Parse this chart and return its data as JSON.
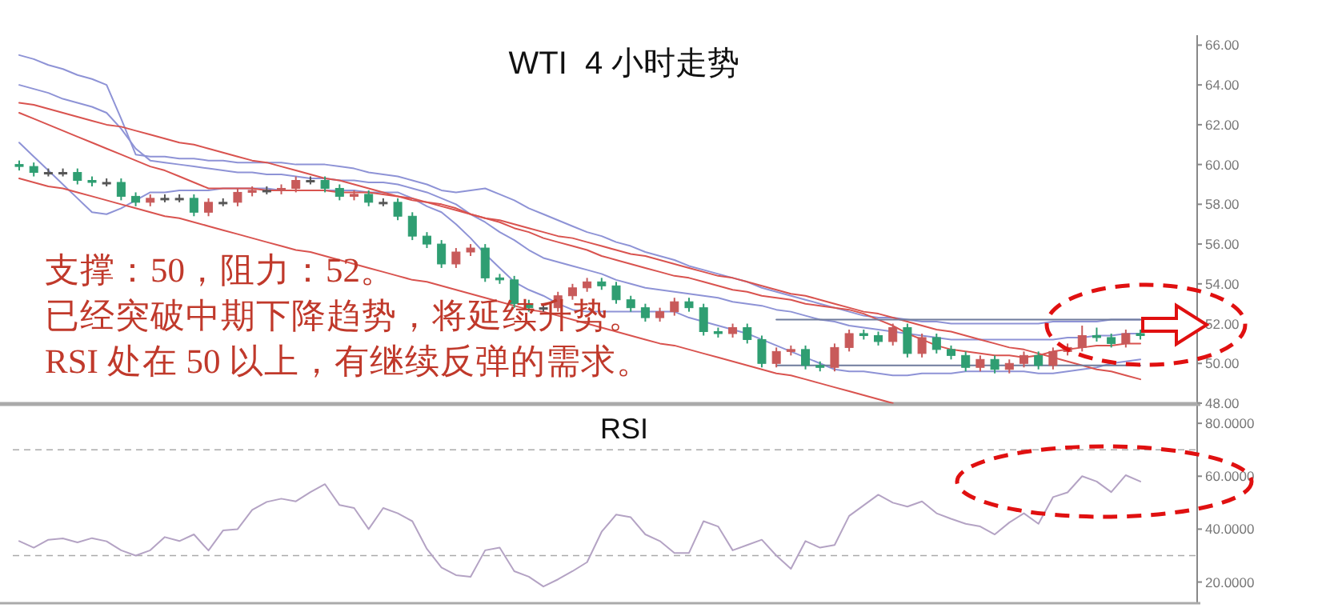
{
  "chart_data": [
    {
      "type": "candlestick",
      "title": "WTI  4 小时走势",
      "tick_labels": "y",
      "categories": [
        null,
        null,
        null,
        null,
        null,
        null,
        null,
        null,
        null,
        null,
        null,
        null,
        null,
        null,
        null,
        null,
        null,
        null,
        null,
        null,
        null,
        null,
        null,
        null,
        null,
        null,
        null,
        null,
        null,
        null,
        null,
        null,
        null,
        null,
        null,
        null,
        null,
        null,
        null,
        null,
        null,
        null,
        null,
        null,
        null,
        null,
        null,
        null,
        null,
        null,
        null,
        null,
        null,
        null,
        null,
        null,
        null,
        null,
        null,
        null,
        null,
        null,
        null,
        null,
        null,
        null,
        null,
        null,
        null,
        null,
        null,
        null,
        null,
        null,
        null,
        null,
        null,
        null
      ],
      "ohlc": [
        [
          60.0,
          60.2,
          59.7,
          59.9
        ],
        [
          59.9,
          60.1,
          59.4,
          59.6
        ],
        [
          59.6,
          59.8,
          59.4,
          59.6
        ],
        [
          59.6,
          59.8,
          59.4,
          59.6
        ],
        [
          59.6,
          59.8,
          59.0,
          59.2
        ],
        [
          59.2,
          59.4,
          58.9,
          59.1
        ],
        [
          59.1,
          59.3,
          58.9,
          59.1
        ],
        [
          59.1,
          59.3,
          58.2,
          58.4
        ],
        [
          58.4,
          58.6,
          57.9,
          58.1
        ],
        [
          58.1,
          58.5,
          57.9,
          58.3
        ],
        [
          58.3,
          58.5,
          58.1,
          58.3
        ],
        [
          58.3,
          58.5,
          58.1,
          58.3
        ],
        [
          58.3,
          58.5,
          57.4,
          57.6
        ],
        [
          57.6,
          58.3,
          57.4,
          58.1
        ],
        [
          58.1,
          58.3,
          57.9,
          58.1
        ],
        [
          58.1,
          58.8,
          57.9,
          58.6
        ],
        [
          58.6,
          58.9,
          58.4,
          58.7
        ],
        [
          58.7,
          58.9,
          58.5,
          58.7
        ],
        [
          58.7,
          59.0,
          58.5,
          58.8
        ],
        [
          58.8,
          59.4,
          58.6,
          59.2
        ],
        [
          59.2,
          59.4,
          59.0,
          59.2
        ],
        [
          59.2,
          59.4,
          58.6,
          58.8
        ],
        [
          58.8,
          59.0,
          58.2,
          58.4
        ],
        [
          58.4,
          58.7,
          58.2,
          58.5
        ],
        [
          58.5,
          58.7,
          57.9,
          58.1
        ],
        [
          58.1,
          58.3,
          57.9,
          58.1
        ],
        [
          58.1,
          58.3,
          57.2,
          57.4
        ],
        [
          57.4,
          57.6,
          56.2,
          56.4
        ],
        [
          56.4,
          56.6,
          55.8,
          56.0
        ],
        [
          56.0,
          56.2,
          54.8,
          55.0
        ],
        [
          55.0,
          55.8,
          54.8,
          55.6
        ],
        [
          55.6,
          56.0,
          55.4,
          55.8
        ],
        [
          55.8,
          56.0,
          54.1,
          54.3
        ],
        [
          54.3,
          54.5,
          54.0,
          54.2
        ],
        [
          54.2,
          54.4,
          52.8,
          53.0
        ],
        [
          53.0,
          53.2,
          52.6,
          52.8
        ],
        [
          52.8,
          53.0,
          52.6,
          52.8
        ],
        [
          52.8,
          53.6,
          52.6,
          53.4
        ],
        [
          53.4,
          54.0,
          53.2,
          53.8
        ],
        [
          53.8,
          54.3,
          53.6,
          54.1
        ],
        [
          54.1,
          54.3,
          53.7,
          53.9
        ],
        [
          53.9,
          54.1,
          53.0,
          53.2
        ],
        [
          53.2,
          53.4,
          52.6,
          52.8
        ],
        [
          52.8,
          53.0,
          52.1,
          52.3
        ],
        [
          52.3,
          52.8,
          52.1,
          52.6
        ],
        [
          52.6,
          53.3,
          52.4,
          53.1
        ],
        [
          53.1,
          53.3,
          52.6,
          52.8
        ],
        [
          52.8,
          53.0,
          51.4,
          51.6
        ],
        [
          51.6,
          51.8,
          51.3,
          51.5
        ],
        [
          51.5,
          52.0,
          51.3,
          51.8
        ],
        [
          51.8,
          52.0,
          51.0,
          51.2
        ],
        [
          51.2,
          51.4,
          49.8,
          50.0
        ],
        [
          50.0,
          50.8,
          49.8,
          50.6
        ],
        [
          50.6,
          50.9,
          50.4,
          50.7
        ],
        [
          50.7,
          50.9,
          49.7,
          49.9
        ],
        [
          49.9,
          50.1,
          49.6,
          49.8
        ],
        [
          49.8,
          51.0,
          49.6,
          50.8
        ],
        [
          50.8,
          51.7,
          50.6,
          51.5
        ],
        [
          51.5,
          51.7,
          51.2,
          51.4
        ],
        [
          51.4,
          51.6,
          50.9,
          51.1
        ],
        [
          51.1,
          52.0,
          50.9,
          51.8
        ],
        [
          51.8,
          52.0,
          50.3,
          50.5
        ],
        [
          50.5,
          51.5,
          50.3,
          51.3
        ],
        [
          51.3,
          51.5,
          50.5,
          50.7
        ],
        [
          50.7,
          50.9,
          50.2,
          50.4
        ],
        [
          50.4,
          50.6,
          49.6,
          49.8
        ],
        [
          49.8,
          50.4,
          49.6,
          50.2
        ],
        [
          50.2,
          50.4,
          49.5,
          49.7
        ],
        [
          49.7,
          50.2,
          49.5,
          50.0
        ],
        [
          50.0,
          50.6,
          49.8,
          50.4
        ],
        [
          50.4,
          50.6,
          49.7,
          49.9
        ],
        [
          49.9,
          50.8,
          49.7,
          50.6
        ],
        [
          50.6,
          51.0,
          50.4,
          50.8
        ],
        [
          50.8,
          51.9,
          50.6,
          51.4
        ],
        [
          51.4,
          51.8,
          51.1,
          51.3
        ],
        [
          51.3,
          51.5,
          50.8,
          51.0
        ],
        [
          51.0,
          51.7,
          50.8,
          51.5
        ],
        [
          51.5,
          51.7,
          51.2,
          51.4
        ]
      ],
      "colors": [
        "#2f9e72",
        "#2f9e72",
        "#555555",
        "#555555",
        "#2f9e72",
        "#2f9e72",
        "#555555",
        "#2f9e72",
        "#2f9e72",
        "#c85a5a",
        "#555555",
        "#555555",
        "#2f9e72",
        "#c85a5a",
        "#555555",
        "#c85a5a",
        "#c85a5a",
        "#555555",
        "#c85a5a",
        "#c85a5a",
        "#555555",
        "#2f9e72",
        "#2f9e72",
        "#c85a5a",
        "#2f9e72",
        "#555555",
        "#2f9e72",
        "#2f9e72",
        "#2f9e72",
        "#2f9e72",
        "#c85a5a",
        "#c85a5a",
        "#2f9e72",
        "#2f9e72",
        "#2f9e72",
        "#2f9e72",
        "#555555",
        "#c85a5a",
        "#c85a5a",
        "#c85a5a",
        "#2f9e72",
        "#2f9e72",
        "#2f9e72",
        "#2f9e72",
        "#c85a5a",
        "#c85a5a",
        "#2f9e72",
        "#2f9e72",
        "#2f9e72",
        "#c85a5a",
        "#2f9e72",
        "#2f9e72",
        "#c85a5a",
        "#c85a5a",
        "#2f9e72",
        "#2f9e72",
        "#c85a5a",
        "#c85a5a",
        "#2f9e72",
        "#2f9e72",
        "#c85a5a",
        "#2f9e72",
        "#c85a5a",
        "#2f9e72",
        "#2f9e72",
        "#2f9e72",
        "#c85a5a",
        "#2f9e72",
        "#c85a5a",
        "#c85a5a",
        "#2f9e72",
        "#c85a5a",
        "#c85a5a",
        "#c85a5a",
        "#2f9e72",
        "#2f9e72",
        "#c85a5a",
        "#2f9e72"
      ],
      "series": [
        {
          "type": "line",
          "color": "#8e93d6",
          "values": [
            65.5,
            65.3,
            65.0,
            64.8,
            64.5,
            64.3,
            64.0,
            62.3,
            60.5,
            60.4,
            60.4,
            60.3,
            60.3,
            60.2,
            60.2,
            60.1,
            60.1,
            60.1,
            60.1,
            60.0,
            60.0,
            60.0,
            59.9,
            59.8,
            59.6,
            59.5,
            59.4,
            59.2,
            59.0,
            58.7,
            58.6,
            58.7,
            58.8,
            58.5,
            58.2,
            57.8,
            57.5,
            57.2,
            56.9,
            56.6,
            56.4,
            56.1,
            55.9,
            55.6,
            55.4,
            55.2,
            54.9,
            54.7,
            54.5,
            54.3,
            54.1,
            53.8,
            53.6,
            53.4,
            53.2,
            53.0,
            52.8,
            52.6,
            52.4,
            52.3,
            52.3,
            52.2,
            52.1,
            52.1,
            52.0,
            52.0,
            52.0,
            52.0,
            52.0,
            52.0,
            52.0,
            52.1,
            52.1,
            52.1,
            52.1,
            52.2,
            52.2,
            52.2
          ]
        },
        {
          "type": "line",
          "color": "#8e93d6",
          "values": [
            64.0,
            63.8,
            63.6,
            63.3,
            63.1,
            62.9,
            62.6,
            61.8,
            60.8,
            60.2,
            60.1,
            60.0,
            59.9,
            59.8,
            59.7,
            59.6,
            59.6,
            59.5,
            59.5,
            59.4,
            59.3,
            59.3,
            59.2,
            59.2,
            59.1,
            59.1,
            59.0,
            58.8,
            58.6,
            58.3,
            58.0,
            57.5,
            57.1,
            56.6,
            56.2,
            55.7,
            55.3,
            55.1,
            54.9,
            54.7,
            54.5,
            54.2,
            54.0,
            53.8,
            53.7,
            53.6,
            53.5,
            53.4,
            53.3,
            53.1,
            53.0,
            52.9,
            52.7,
            52.6,
            52.4,
            52.2,
            52.1,
            51.9,
            51.8,
            51.7,
            51.6,
            51.5,
            51.4,
            51.3,
            51.2,
            51.2,
            51.2,
            51.2,
            51.2,
            51.2,
            51.2,
            51.2,
            51.3,
            51.3,
            51.4,
            51.4,
            51.5,
            51.5
          ]
        },
        {
          "type": "line",
          "color": "#8e93d6",
          "values": [
            61.1,
            60.4,
            59.7,
            59.0,
            58.3,
            57.6,
            57.5,
            57.8,
            58.2,
            58.6,
            58.6,
            58.7,
            58.7,
            58.7,
            58.8,
            58.8,
            58.8,
            58.8,
            58.7,
            58.7,
            58.7,
            58.7,
            58.7,
            58.7,
            58.6,
            58.6,
            58.6,
            58.3,
            57.9,
            57.6,
            57.0,
            56.3,
            55.5,
            54.8,
            54.1,
            53.7,
            53.4,
            53.0,
            52.7,
            52.6,
            52.6,
            52.6,
            52.6,
            52.6,
            52.6,
            52.6,
            52.3,
            52.1,
            51.9,
            51.7,
            51.5,
            51.2,
            50.9,
            50.6,
            50.3,
            50.0,
            49.7,
            49.6,
            49.6,
            49.5,
            49.4,
            49.4,
            49.5,
            49.5,
            49.5,
            49.6,
            49.6,
            49.6,
            49.6,
            49.6,
            49.5,
            49.5,
            49.6,
            49.7,
            49.8,
            50.0,
            50.1,
            50.2
          ]
        },
        {
          "type": "line",
          "color": "#d9534f",
          "values": [
            62.6,
            62.3,
            62.0,
            61.7,
            61.4,
            61.1,
            60.8,
            60.5,
            60.2,
            59.9,
            59.7,
            59.4,
            59.1,
            58.8,
            58.8,
            58.8,
            58.8,
            58.7,
            58.7,
            58.7,
            58.7,
            58.7,
            58.6,
            58.6,
            58.6,
            58.5,
            58.4,
            58.3,
            58.1,
            58.0,
            57.8,
            57.5,
            57.3,
            57.1,
            56.8,
            56.6,
            56.3,
            56.1,
            55.9,
            55.7,
            55.4,
            55.2,
            55.0,
            54.8,
            54.6,
            54.4,
            54.3,
            54.1,
            53.9,
            53.7,
            53.6,
            53.4,
            53.3,
            53.2,
            53.0,
            52.9,
            52.8,
            52.7,
            52.5,
            52.2,
            51.9,
            51.5,
            51.2,
            50.9,
            50.7,
            50.6,
            50.5,
            50.4,
            50.4,
            50.3,
            50.4,
            50.6,
            50.7,
            50.8,
            50.9,
            50.9,
            51.0,
            51.0
          ]
        },
        {
          "type": "line",
          "color": "#d9534f",
          "values": [
            63.1,
            63.0,
            62.8,
            62.6,
            62.4,
            62.2,
            62.0,
            61.9,
            61.7,
            61.5,
            61.3,
            61.1,
            61.0,
            60.8,
            60.6,
            60.4,
            60.2,
            60.1,
            59.9,
            59.7,
            59.5,
            59.3,
            59.2,
            59.0,
            58.8,
            58.6,
            58.4,
            58.2,
            58.1,
            57.9,
            57.7,
            57.5,
            57.3,
            57.2,
            57.0,
            56.8,
            56.6,
            56.4,
            56.3,
            56.1,
            55.9,
            55.7,
            55.5,
            55.4,
            55.2,
            55.0,
            54.8,
            54.6,
            54.4,
            54.3,
            54.1,
            53.9,
            53.7,
            53.5,
            53.4,
            53.2,
            53.0,
            52.8,
            52.6,
            52.5,
            52.3,
            52.1,
            51.9,
            51.7,
            51.6,
            51.4,
            51.2,
            51.0,
            50.8,
            50.7,
            50.5,
            50.3,
            50.1,
            49.9,
            49.7,
            49.6,
            49.4,
            49.2
          ]
        },
        {
          "type": "line",
          "color": "#d9534f",
          "values": [
            59.3,
            59.1,
            58.9,
            58.8,
            58.6,
            58.4,
            58.2,
            58.0,
            57.8,
            57.6,
            57.4,
            57.3,
            57.1,
            56.9,
            56.7,
            56.5,
            56.3,
            56.1,
            55.9,
            55.7,
            55.6,
            55.4,
            55.2,
            55.0,
            54.8,
            54.6,
            54.4,
            54.2,
            54.1,
            53.9,
            53.7,
            53.5,
            53.3,
            53.1,
            52.9,
            52.7,
            52.6,
            52.4,
            52.2,
            52.0,
            51.8,
            51.6,
            51.4,
            51.2,
            51.0,
            50.9,
            50.7,
            50.5,
            50.3,
            50.1,
            49.9,
            49.7,
            49.5,
            49.4,
            49.2,
            49.0,
            48.8,
            48.6,
            48.4,
            48.2,
            48.0,
            null,
            null,
            null,
            null,
            null,
            null,
            null,
            null,
            null,
            null,
            null,
            null,
            null,
            null,
            null,
            null,
            null
          ]
        },
        {
          "type": "line",
          "color": "#6e7b9c",
          "values": [
            null,
            null,
            null,
            null,
            null,
            null,
            null,
            null,
            null,
            null,
            null,
            null,
            null,
            null,
            null,
            null,
            null,
            null,
            null,
            null,
            null,
            null,
            null,
            null,
            null,
            null,
            null,
            null,
            null,
            null,
            null,
            null,
            null,
            null,
            null,
            null,
            null,
            null,
            null,
            null,
            null,
            null,
            null,
            null,
            null,
            null,
            null,
            null,
            null,
            null,
            null,
            null,
            52.2,
            52.2,
            52.2,
            52.2,
            52.2,
            52.2,
            52.2,
            52.2,
            52.2,
            52.2,
            52.2,
            52.2,
            52.2,
            52.2,
            52.2,
            52.2,
            52.2,
            52.2,
            52.2,
            52.2,
            52.2,
            52.2,
            52.2,
            52.2,
            52.2,
            52.2
          ]
        },
        {
          "type": "line",
          "color": "#6e7b9c",
          "values": [
            null,
            null,
            null,
            null,
            null,
            null,
            null,
            null,
            null,
            null,
            null,
            null,
            null,
            null,
            null,
            null,
            null,
            null,
            null,
            null,
            null,
            null,
            null,
            null,
            null,
            null,
            null,
            null,
            null,
            null,
            null,
            null,
            null,
            null,
            null,
            null,
            null,
            null,
            null,
            null,
            null,
            null,
            null,
            null,
            null,
            null,
            null,
            null,
            null,
            null,
            null,
            null,
            49.9,
            49.9,
            49.9,
            49.9,
            49.9,
            49.9,
            49.9,
            49.9,
            49.9,
            49.9,
            49.9,
            49.9,
            49.9,
            49.9,
            49.9,
            49.9,
            49.9,
            49.9,
            49.9,
            49.9,
            49.9,
            49.9,
            49.9,
            49.9,
            49.9,
            49.9
          ]
        }
      ],
      "ylim": [
        48,
        66.5
      ],
      "yticks": [
        {
          "value": 48,
          "label": "48.00"
        },
        {
          "value": 50,
          "label": "50.00"
        },
        {
          "value": 52,
          "label": "52.00"
        },
        {
          "value": 54,
          "label": "54.00"
        },
        {
          "value": 56,
          "label": "56.00"
        },
        {
          "value": 58,
          "label": "58.00"
        },
        {
          "value": 60,
          "label": "60.00"
        },
        {
          "value": 62,
          "label": "62.00"
        },
        {
          "value": 64,
          "label": "64.00"
        },
        {
          "value": 66,
          "label": "66.00"
        }
      ],
      "annotations": [
        "支撑：50，阻力：52。",
        "已经突破中期下降趋势，将延续升势。",
        "RSI 处在 50 以上，有继续反弹的需求。"
      ]
    },
    {
      "type": "line",
      "title": "RSI",
      "tick_labels": "y",
      "categories": [
        null,
        null,
        null,
        null,
        null,
        null,
        null,
        null,
        null,
        null,
        null,
        null,
        null,
        null,
        null,
        null,
        null,
        null,
        null,
        null,
        null,
        null,
        null,
        null,
        null,
        null,
        null,
        null,
        null,
        null,
        null,
        null,
        null,
        null,
        null,
        null,
        null,
        null,
        null,
        null,
        null,
        null,
        null,
        null,
        null,
        null,
        null,
        null,
        null,
        null,
        null,
        null,
        null,
        null,
        null,
        null,
        null,
        null,
        null,
        null,
        null,
        null,
        null,
        null,
        null,
        null,
        null,
        null,
        null,
        null,
        null,
        null,
        null,
        null,
        null,
        null,
        null,
        null
      ],
      "series": [
        {
          "color": "#b4a3c4",
          "values": [
            35.5,
            33.0,
            36.0,
            36.5,
            35.0,
            36.6,
            35.4,
            32.0,
            30.0,
            32.0,
            37.0,
            35.5,
            38.0,
            31.9,
            39.5,
            40.0,
            47.3,
            50.3,
            51.5,
            50.5,
            54.0,
            57.0,
            49.1,
            48.0,
            40.0,
            48.0,
            46.0,
            43.0,
            32.5,
            25.5,
            22.6,
            22.0,
            32.0,
            33.0,
            24.1,
            22.0,
            18.3,
            21.0,
            24.1,
            27.5,
            39.0,
            45.5,
            44.5,
            38.0,
            35.5,
            31.0,
            31.0,
            43.0,
            41.0,
            32.0,
            34.0,
            36.0,
            30.0,
            25.0,
            35.5,
            33.0,
            34.0,
            45.0,
            49.0,
            53.0,
            50.0,
            48.5,
            50.5,
            46.0,
            43.9,
            42.0,
            41.0,
            38.0,
            42.5,
            46.0,
            42.0,
            52.1,
            53.9,
            60.0,
            58.0,
            54.0,
            60.4,
            58.0
          ]
        }
      ],
      "ylim": [
        12,
        87
      ],
      "yticks": [
        {
          "value": 20,
          "label": "20.0000"
        },
        {
          "value": 40,
          "label": "40.0000"
        },
        {
          "value": 60,
          "label": "60.0000"
        },
        {
          "value": 80,
          "label": "80.0000"
        }
      ],
      "ref_lines": [
        {
          "axis": "y",
          "value": 70,
          "color": "#aaaaaa",
          "line_style": "dashed"
        },
        {
          "axis": "y",
          "value": 30,
          "color": "#aaaaaa",
          "line_style": "dashed"
        }
      ]
    }
  ]
}
